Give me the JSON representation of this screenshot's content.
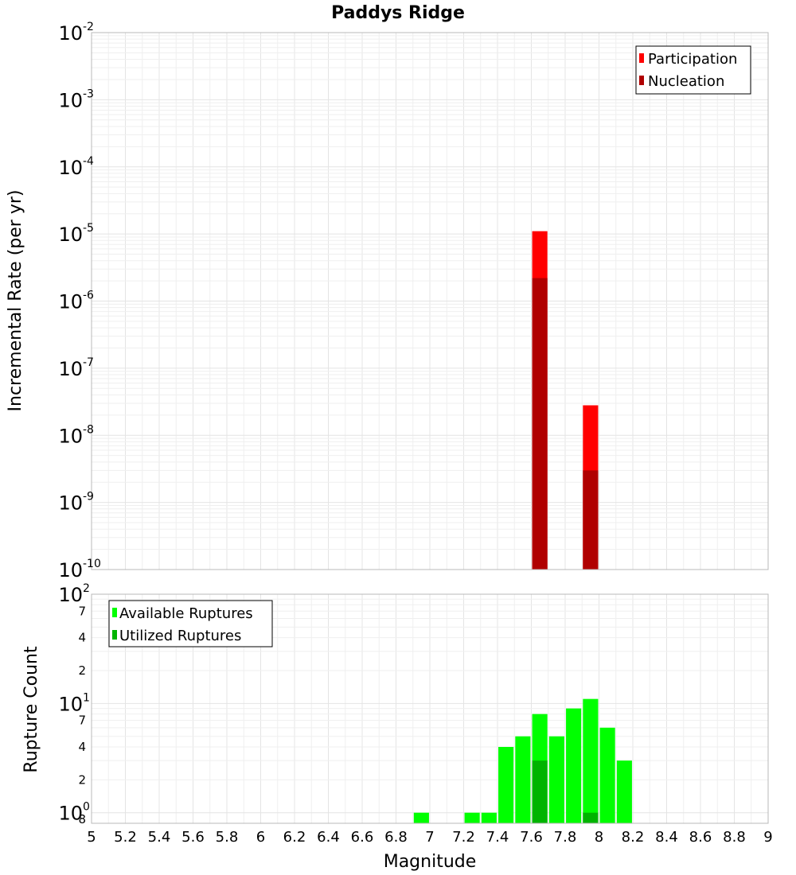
{
  "chart_data": [
    {
      "type": "bar",
      "title": "Paddys Ridge",
      "xlabel": "",
      "ylabel": "Incremental Rate (per yr)",
      "yscale": "log",
      "ylim": [
        1e-10,
        0.01
      ],
      "xlim": [
        5,
        9
      ],
      "grid": true,
      "legend_position": "top-right",
      "bar_width": 0.09,
      "series": [
        {
          "name": "Participation",
          "color": "#ff0000",
          "x": [
            7.65,
            7.95
          ],
          "values": [
            1.1e-05,
            2.8e-08
          ]
        },
        {
          "name": "Nucleation",
          "color": "#b00000",
          "x": [
            7.65,
            7.95
          ],
          "values": [
            2.2e-06,
            3e-09
          ]
        }
      ]
    },
    {
      "type": "bar",
      "title": "",
      "xlabel": "Magnitude",
      "ylabel": "Rupture Count",
      "yscale": "log",
      "ylim": [
        0.8,
        100
      ],
      "xlim": [
        5,
        9
      ],
      "grid": true,
      "legend_position": "top-left",
      "bar_width": 0.09,
      "x_ticks": [
        "5",
        "5.2",
        "5.4",
        "5.6",
        "5.8",
        "6",
        "6.2",
        "6.4",
        "6.6",
        "6.8",
        "7",
        "7.2",
        "7.4",
        "7.6",
        "7.8",
        "8",
        "8.2",
        "8.4",
        "8.6",
        "8.8",
        "9"
      ],
      "series": [
        {
          "name": "Available Ruptures",
          "color": "#00ff00",
          "x": [
            6.95,
            7.25,
            7.35,
            7.45,
            7.55,
            7.65,
            7.75,
            7.85,
            7.95,
            8.05,
            8.15
          ],
          "values": [
            1,
            1,
            1,
            4,
            5,
            8,
            5,
            9,
            11,
            6,
            3
          ]
        },
        {
          "name": "Utilized Ruptures",
          "color": "#00b400",
          "x": [
            7.65,
            7.95
          ],
          "values": [
            3,
            1
          ]
        }
      ]
    }
  ],
  "ticks": {
    "top_y": [
      {
        "base": "10",
        "exp": "-2"
      },
      {
        "base": "10",
        "exp": "-3"
      },
      {
        "base": "10",
        "exp": "-4"
      },
      {
        "base": "10",
        "exp": "-5"
      },
      {
        "base": "10",
        "exp": "-6"
      },
      {
        "base": "10",
        "exp": "-7"
      },
      {
        "base": "10",
        "exp": "-8"
      },
      {
        "base": "10",
        "exp": "-9"
      },
      {
        "base": "10",
        "exp": "-10"
      }
    ],
    "bottom_y_major": [
      {
        "base": "10",
        "exp": "2"
      },
      {
        "base": "10",
        "exp": "1"
      },
      {
        "base": "10",
        "exp": "0"
      }
    ],
    "bottom_y_minor": [
      "7",
      "4",
      "2",
      "7",
      "4",
      "2",
      "8"
    ]
  }
}
